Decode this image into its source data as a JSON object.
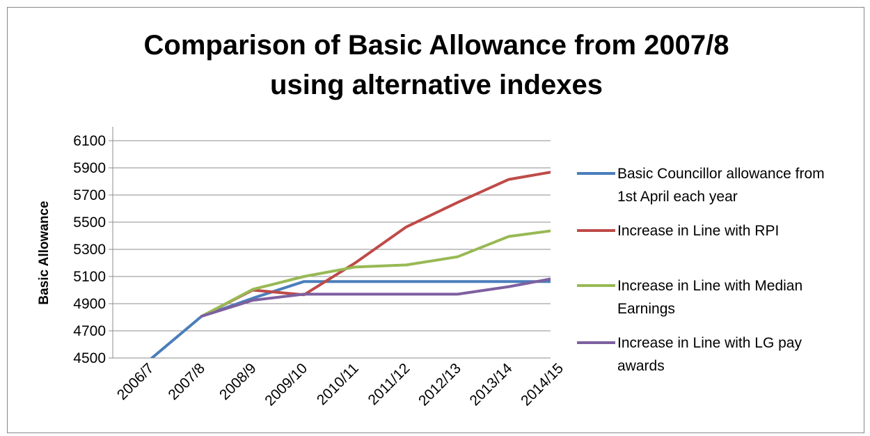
{
  "chart_data": {
    "type": "line",
    "title": "Comparison of Basic Allowance from 2007/8 using alternative  indexes",
    "title_lines": [
      "Comparison of Basic Allowance from 2007/8",
      "using alternative  indexes"
    ],
    "xlabel": "",
    "ylabel": "Basic Allowance",
    "categories": [
      "2006/7",
      "2007/8",
      "2008/9",
      "2009/10",
      "2010/11",
      "2011/12",
      "2012/13",
      "2013/14",
      "2014/15"
    ],
    "ylim": [
      4500,
      6100
    ],
    "yticks": [
      4500,
      4700,
      4900,
      5100,
      5300,
      5500,
      5700,
      5900,
      6100
    ],
    "grid": true,
    "legend_position": "right",
    "series": [
      {
        "name": "Basic Councillor allowance from 1st April each year",
        "legend_lines": [
          "Basic Councillor allowance from",
          "1st April each year"
        ],
        "color": "#4a7ebb",
        "values": [
          4490,
          4807,
          4940,
          5063,
          5063,
          5063,
          5063,
          5063,
          5063
        ]
      },
      {
        "name": "Increase in Line with RPI",
        "legend_lines": [
          "Increase in Line with RPI"
        ],
        "color": "#be4b48",
        "values": [
          null,
          4807,
          5000,
          4965,
          5200,
          5465,
          5645,
          5815,
          5880
        ]
      },
      {
        "name": "Increase in Line with Median Earnings",
        "legend_lines": [
          "Increase in Line with Median",
          "Earnings"
        ],
        "color": "#98b954",
        "values": [
          null,
          4807,
          5005,
          5100,
          5170,
          5185,
          5245,
          5395,
          5445
        ]
      },
      {
        "name": "Increase in Line with LG pay awards",
        "legend_lines": [
          "Increase in Line with LG pay",
          "awards"
        ],
        "color": "#7d60a0",
        "values": [
          null,
          4807,
          4925,
          4970,
          4970,
          4970,
          4970,
          5025,
          5095
        ]
      }
    ]
  }
}
